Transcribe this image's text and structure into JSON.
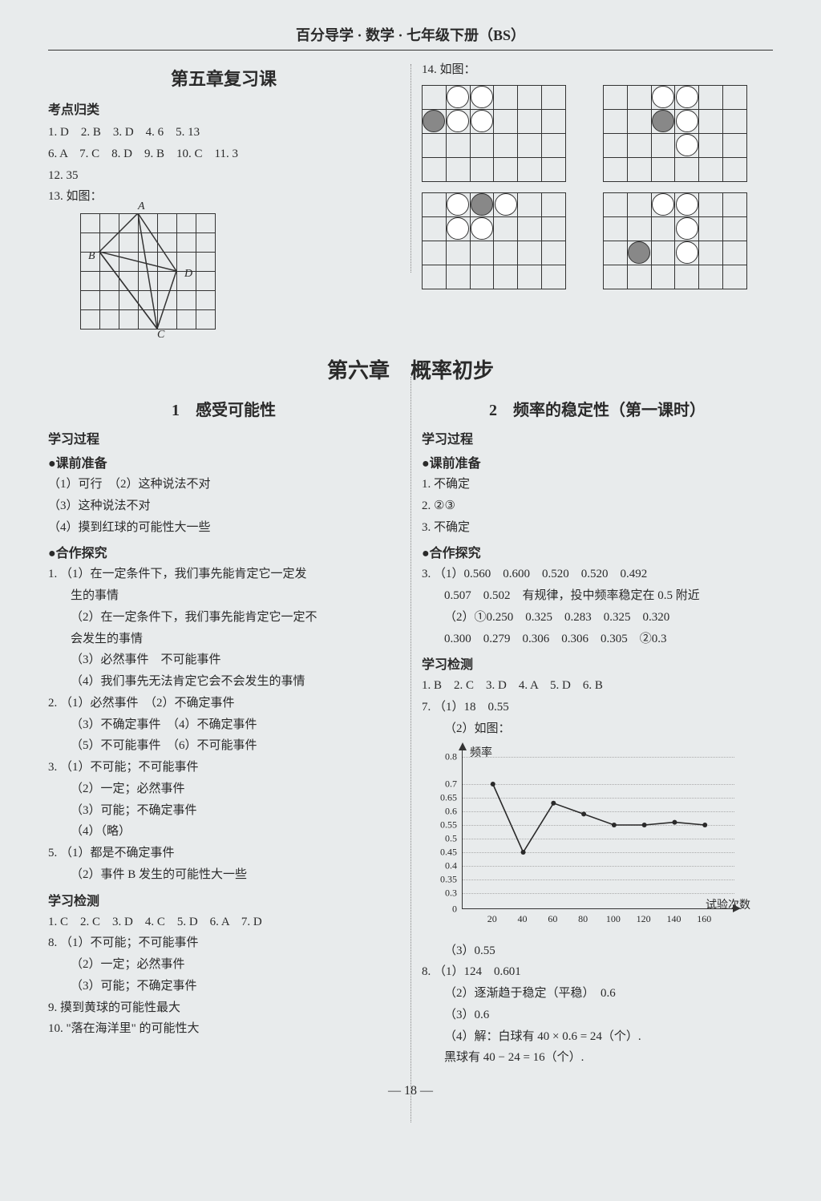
{
  "header": "百分导学 · 数学 · 七年级下册（BS）",
  "page_number": "— 18 —",
  "top": {
    "left": {
      "title": "第五章复习课",
      "heading_kd": "考点归类",
      "answers": [
        "1.  D　2.  B　3.  D　4.  6　5.  13",
        "6.  A　7.  C　8.  D　9.  B　10.  C　11.  3",
        "12.  35",
        "13.  如图："
      ],
      "grid": {
        "rows": 6,
        "cols": 7,
        "labels": {
          "A": "A",
          "B": "B",
          "C": "C",
          "D": "D"
        }
      }
    },
    "right": {
      "q14": "14.  如图：",
      "grids": {
        "cell": 30,
        "panels": [
          {
            "circles": [
              {
                "r": 1,
                "c": 0,
                "f": true
              },
              {
                "r": 1,
                "c": 1,
                "f": false
              },
              {
                "r": 1,
                "c": 2,
                "f": false
              },
              {
                "r": 0,
                "c": 1,
                "f": false
              },
              {
                "r": 0,
                "c": 2,
                "f": false
              }
            ]
          },
          {
            "circles": [
              {
                "r": 0,
                "c": 2,
                "f": false
              },
              {
                "r": 0,
                "c": 3,
                "f": false
              },
              {
                "r": 1,
                "c": 2,
                "f": true
              },
              {
                "r": 1,
                "c": 3,
                "f": false
              },
              {
                "r": 2,
                "c": 3,
                "f": false
              }
            ]
          },
          {
            "circles": [
              {
                "r": 0,
                "c": 1,
                "f": false
              },
              {
                "r": 0,
                "c": 2,
                "f": true
              },
              {
                "r": 0,
                "c": 3,
                "f": false
              },
              {
                "r": 1,
                "c": 1,
                "f": false
              },
              {
                "r": 1,
                "c": 2,
                "f": false
              }
            ]
          },
          {
            "circles": [
              {
                "r": 0,
                "c": 2,
                "f": false
              },
              {
                "r": 0,
                "c": 3,
                "f": false
              },
              {
                "r": 1,
                "c": 3,
                "f": false
              },
              {
                "r": 2,
                "c": 1,
                "f": true
              },
              {
                "r": 2,
                "c": 3,
                "f": false
              }
            ]
          }
        ]
      }
    }
  },
  "chapter": "第六章　概率初步",
  "left_col": {
    "lesson": "1　感受可能性",
    "h_process": "学习过程",
    "h_prep": "●课前准备",
    "prep": [
      "（1）可行　（2）这种说法不对",
      "（3）这种说法不对",
      "（4）摸到红球的可能性大一些"
    ],
    "h_coop": "●合作探究",
    "coop": [
      "1. （1）在一定条件下，我们事先能肯定它一定发",
      "生的事情",
      "（2）在一定条件下，我们事先能肯定它一定不",
      "会发生的事情",
      "（3）必然事件　不可能事件",
      "（4）我们事先无法肯定它会不会发生的事情",
      "2. （1）必然事件　（2）不确定事件",
      "（3）不确定事件　（4）不确定事件",
      "（5）不可能事件　（6）不可能事件",
      "3. （1）不可能；不可能事件",
      "（2）一定；必然事件",
      "（3）可能；不确定事件",
      "（4）（略）",
      "5. （1）都是不确定事件",
      "（2）事件 B 发生的可能性大一些"
    ],
    "h_test": "学习检测",
    "test": [
      "1.  C　2.  C　3.  D　4.  C　5.  D　6.  A　7.  D",
      "8. （1）不可能；不可能事件",
      "（2）一定；必然事件",
      "（3）可能；不确定事件",
      "9.  摸到黄球的可能性最大",
      "10. \"落在海洋里\" 的可能性大"
    ]
  },
  "right_col": {
    "lesson": "2　频率的稳定性（第一课时）",
    "h_process": "学习过程",
    "h_prep": "●课前准备",
    "prep": [
      "1.  不确定",
      "2.  ②③",
      "3.  不确定"
    ],
    "h_coop": "●合作探究",
    "coop": [
      "3. （1）0.560　0.600　0.520　0.520　0.492",
      "0.507　0.502　有规律，投中频率稳定在 0.5 附近",
      "（2）①0.250　0.325　0.283　0.325　0.320",
      "0.300　0.279　0.306　0.306　0.305　②0.3"
    ],
    "h_test": "学习检测",
    "test_top": [
      "1.  B　2.  C　3.  D　4.  A　5.  D　6.  B",
      "7. （1）18　0.55",
      "（2）如图："
    ],
    "chart": {
      "ylabel": "频率",
      "xlabel": "试验次数",
      "yticks": [
        "0",
        "0.3",
        "0.35",
        "0.4",
        "0.45",
        "0.5",
        "0.55",
        "0.6",
        "0.65",
        "0.7",
        "0.8"
      ],
      "ytick_vals": [
        0,
        0.3,
        0.35,
        0.4,
        0.45,
        0.5,
        0.55,
        0.6,
        0.65,
        0.7,
        0.8
      ],
      "xticks": [
        "20",
        "40",
        "60",
        "80",
        "100",
        "120",
        "140",
        "160"
      ],
      "x_vals": [
        20,
        40,
        60,
        80,
        100,
        120,
        140,
        160
      ],
      "y_vals": [
        0.7,
        0.45,
        0.63,
        0.59,
        0.55,
        0.55,
        0.56,
        0.55
      ],
      "line_color": "#2a2a2a",
      "grid_color": "#aaaaaa",
      "marker": "circle",
      "marker_fill": "#2a2a2a"
    },
    "test_bottom": [
      "（3）0.55",
      "8. （1）124　0.601",
      "（2）逐渐趋于稳定（平稳）　0.6",
      "（3）0.6",
      "（4）解：白球有 40 × 0.6 = 24（个）.",
      "黑球有 40 − 24 = 16（个）."
    ]
  }
}
